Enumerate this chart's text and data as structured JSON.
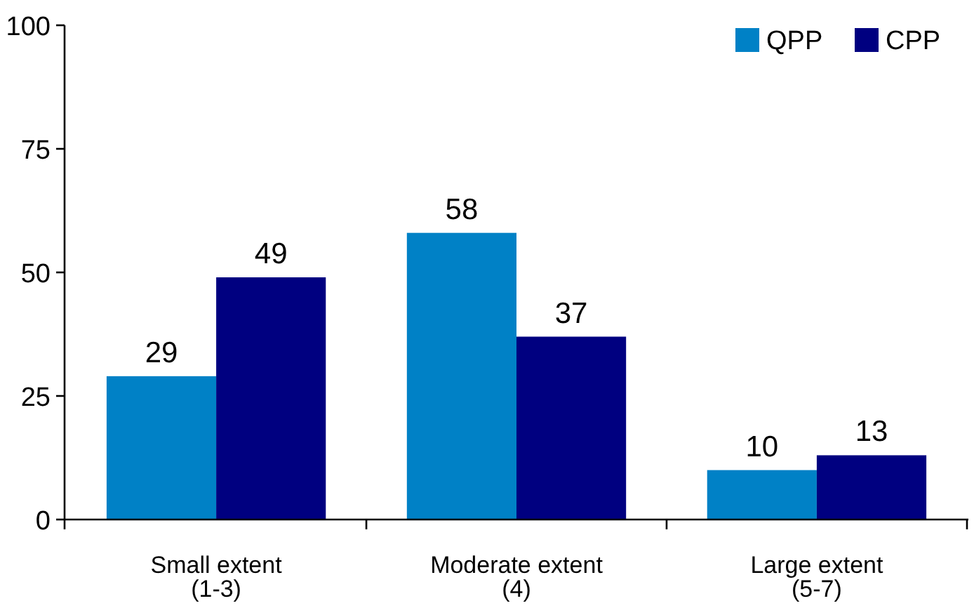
{
  "chart_data": {
    "type": "bar",
    "categories": [
      "Small extent\n(1-3)",
      "Moderate extent\n(4)",
      "Large extent\n(5-7)"
    ],
    "series": [
      {
        "name": "QPP",
        "color": "#0081c6",
        "values": [
          29,
          58,
          10
        ]
      },
      {
        "name": "CPP",
        "color": "#000080",
        "values": [
          49,
          37,
          13
        ]
      }
    ],
    "ylim": [
      0,
      100
    ],
    "yticks": [
      0,
      25,
      50,
      75,
      100
    ],
    "data_labels": true,
    "legend": "top right",
    "grid": false
  }
}
